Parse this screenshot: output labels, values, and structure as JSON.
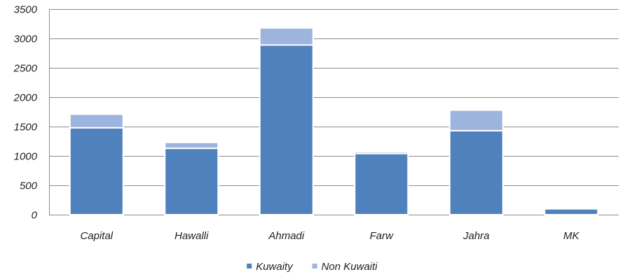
{
  "chart_data": {
    "type": "bar",
    "stacked": true,
    "categories": [
      "Capital",
      "Hawalli",
      "Ahmadi",
      "Farw",
      "Jahra",
      "MK"
    ],
    "series": [
      {
        "name": "Kuwaity",
        "values": [
          1480,
          1130,
          2890,
          1040,
          1430,
          100
        ],
        "color": "#4f81bd"
      },
      {
        "name": "Non Kuwaiti",
        "values": [
          230,
          100,
          290,
          30,
          350,
          5
        ],
        "color": "#9db4de"
      }
    ],
    "ylim": [
      0,
      3500
    ],
    "yticks": [
      0,
      500,
      1000,
      1500,
      2000,
      2500,
      3000,
      3500
    ],
    "grid": true,
    "legend": "bottom",
    "title": "",
    "xlabel": "",
    "ylabel": ""
  }
}
